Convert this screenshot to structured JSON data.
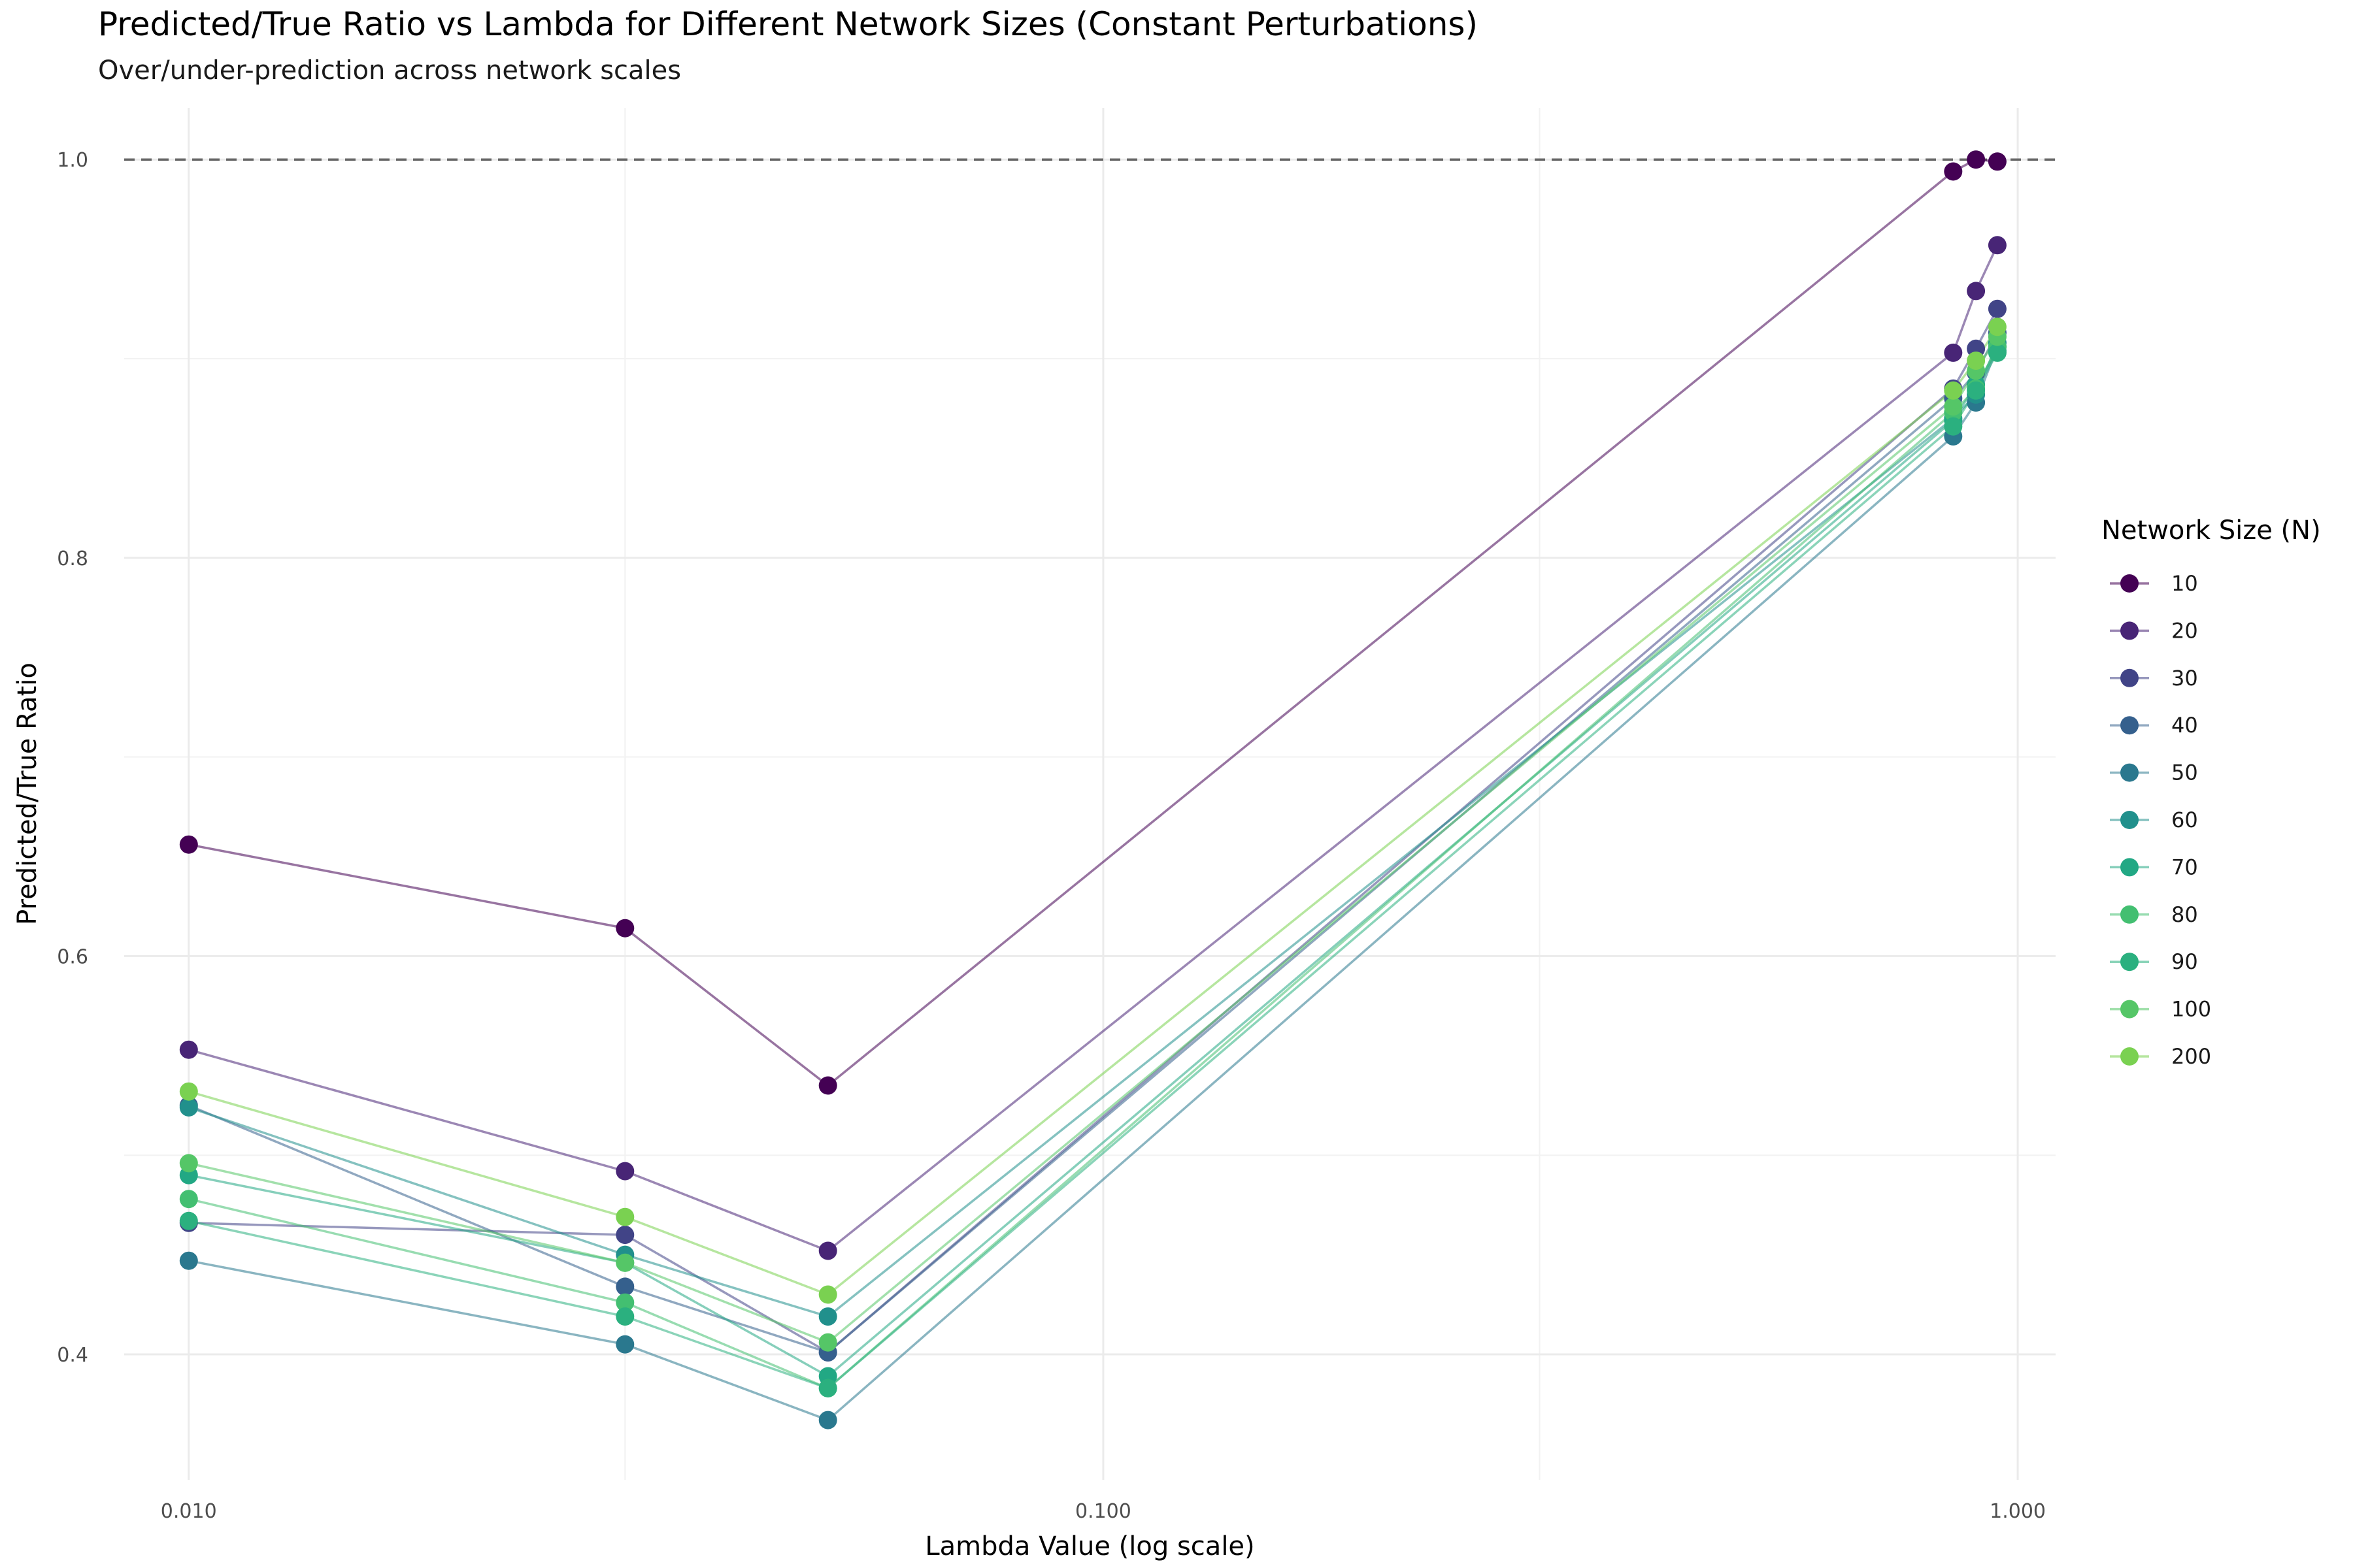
{
  "title": "Predicted/True Ratio vs Lambda for Different Network Sizes (Constant Perturbations)",
  "subtitle": "Over/under-prediction across network scales",
  "chart_data": {
    "type": "line",
    "title": "Predicted/True Ratio vs Lambda for Different Network Sizes (Constant Perturbations)",
    "subtitle": "Over/under-prediction across network scales",
    "xlabel": "Lambda Value (log scale)",
    "ylabel": "Predicted/True Ratio",
    "x_scale": "log10",
    "xlim": [
      0.0085,
      1.1
    ],
    "ylim": [
      0.337,
      1.026
    ],
    "x_ticks": [
      0.01,
      0.1,
      1.0
    ],
    "x_tick_labels": [
      "0.010",
      "0.100",
      "1.000"
    ],
    "y_ticks": [
      0.4,
      0.6,
      0.8,
      1.0
    ],
    "y_tick_labels": [
      "0.4",
      "0.6",
      "0.8",
      "1.0"
    ],
    "reference_line": {
      "y": 1.0,
      "style": "dashed",
      "color": "#666666"
    },
    "grid": true,
    "legend": {
      "title": "Network Size (N)",
      "position": "right"
    },
    "x": [
      0.01,
      0.03,
      0.05,
      0.85,
      0.9,
      0.95
    ],
    "series": [
      {
        "name": "10",
        "color": "#440154",
        "values": [
          0.656,
          0.614,
          0.535,
          0.994,
          1.0,
          0.999
        ]
      },
      {
        "name": "20",
        "color": "#482576",
        "values": [
          0.553,
          0.492,
          0.452,
          0.903,
          0.934,
          0.957
        ]
      },
      {
        "name": "30",
        "color": "#414487",
        "values": [
          0.466,
          0.46,
          0.401,
          0.885,
          0.905,
          0.925
        ]
      },
      {
        "name": "40",
        "color": "#35608D",
        "values": [
          0.525,
          0.434,
          0.401,
          0.88,
          0.893,
          0.913
        ]
      },
      {
        "name": "50",
        "color": "#2A788E",
        "values": [
          0.447,
          0.405,
          0.367,
          0.861,
          0.878,
          0.906
        ]
      },
      {
        "name": "60",
        "color": "#21908C",
        "values": [
          0.524,
          0.45,
          0.419,
          0.87,
          0.882,
          0.908
        ]
      },
      {
        "name": "70",
        "color": "#22A884",
        "values": [
          0.49,
          0.446,
          0.389,
          0.869,
          0.887,
          0.904
        ]
      },
      {
        "name": "80",
        "color": "#43BF71",
        "values": [
          0.478,
          0.426,
          0.383,
          0.873,
          0.885,
          0.906
        ]
      },
      {
        "name": "90",
        "color": "#2BB07F",
        "values": [
          0.467,
          0.419,
          0.383,
          0.866,
          0.884,
          0.903
        ]
      },
      {
        "name": "100",
        "color": "#55C667",
        "values": [
          0.496,
          0.446,
          0.406,
          0.876,
          0.894,
          0.911
        ]
      },
      {
        "name": "200",
        "color": "#7AD151",
        "values": [
          0.532,
          0.469,
          0.43,
          0.884,
          0.899,
          0.916
        ]
      }
    ]
  }
}
